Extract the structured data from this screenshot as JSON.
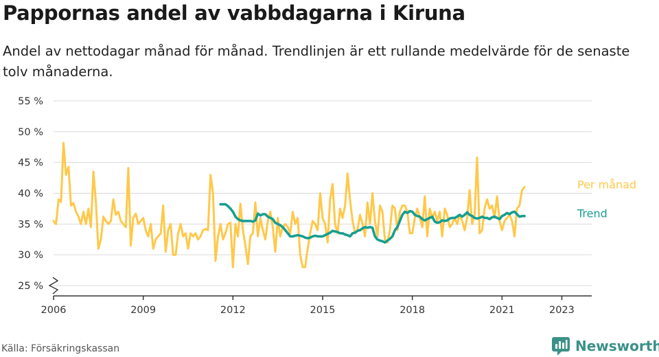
{
  "header": {
    "title": "Pappornas andel av vabbdagarna i Kiruna",
    "subtitle": "Andel av nettodagar månad för månad. Trendlinjen är ett rullande medelvärde för de senaste tolv månaderna."
  },
  "footer": {
    "source": "Källa: Försäkringskassan",
    "brand": "Newsworthy",
    "brand_icon": "bar-chart-speech-bubble-icon",
    "brand_color": "#3a9188"
  },
  "chart_data": {
    "type": "line",
    "title": "Pappornas andel av vabbdagarna i Kiruna",
    "ylabel": "",
    "xlabel": "",
    "ylim": [
      25,
      55
    ],
    "y_axis_break": true,
    "y_ticks": [
      25,
      30,
      35,
      40,
      45,
      50,
      55
    ],
    "y_tick_suffix": " %",
    "x_ticks": [
      "2006",
      "2009",
      "2012",
      "2015",
      "2018",
      "2021",
      "2023"
    ],
    "grid": "horizontal",
    "legend": "direct labels at right end of lines",
    "x_start": "2006-01",
    "x_end": "2023-05",
    "series": [
      {
        "name": "Per månad",
        "color": "#ffc84a",
        "values": [
          35.5,
          35.0,
          39.0,
          38.6,
          48.2,
          43.0,
          44.3,
          38.0,
          38.4,
          37.0,
          36.2,
          35.0,
          37.0,
          35.0,
          37.5,
          34.5,
          43.5,
          38.5,
          31.0,
          32.5,
          36.2,
          35.5,
          35.0,
          35.5,
          39.0,
          36.5,
          37.0,
          35.5,
          35.0,
          34.5,
          44.1,
          31.5,
          36.0,
          36.7,
          35.0,
          35.5,
          36.0,
          34.0,
          33.0,
          35.0,
          31.0,
          32.5,
          33.0,
          33.5,
          38.0,
          30.5,
          34.0,
          35.0,
          30.0,
          30.0,
          33.5,
          35.0,
          33.0,
          33.5,
          31.0,
          33.5,
          33.0,
          33.5,
          32.5,
          33.0,
          34.0,
          34.2,
          34.0,
          43.0,
          40.0,
          29.0,
          33.0,
          35.0,
          32.5,
          33.5,
          35.0,
          35.2,
          28.0,
          35.0,
          33.0,
          38.3,
          34.0,
          31.5,
          28.5,
          33.0,
          33.5,
          38.5,
          33.0,
          36.0,
          34.0,
          32.5,
          35.5,
          37.0,
          34.5,
          30.5,
          36.0,
          33.0,
          34.5,
          35.0,
          34.5,
          33.5,
          37.0,
          35.0,
          36.0,
          30.0,
          28.0,
          28.0,
          31.0,
          33.5,
          35.5,
          35.0,
          34.0,
          40.0,
          36.0,
          35.0,
          32.0,
          39.0,
          41.5,
          35.0,
          33.5,
          37.5,
          36.0,
          38.0,
          43.2,
          39.0,
          35.5,
          33.5,
          34.0,
          36.5,
          35.0,
          33.0,
          38.5,
          35.0,
          40.0,
          35.5,
          33.0,
          38.0,
          37.0,
          32.5,
          32.0,
          34.0,
          38.0,
          37.5,
          34.0,
          37.0,
          38.0,
          38.0,
          37.0,
          33.5,
          33.5,
          36.0,
          37.5,
          36.0,
          34.5,
          39.5,
          33.0,
          37.5,
          36.0,
          37.0,
          35.5,
          37.0,
          33.0,
          37.5,
          36.5,
          34.5,
          35.0,
          36.0,
          35.0,
          36.5,
          35.5,
          34.0,
          36.0,
          40.5,
          35.0,
          36.5,
          45.8,
          33.5,
          34.0,
          37.5,
          39.0,
          37.5,
          38.0,
          36.0,
          39.5,
          35.5,
          34.0,
          35.5,
          36.0,
          36.5,
          35.5,
          33.0,
          37.5,
          38.0,
          40.5,
          41.0
        ]
      },
      {
        "name": "Trend",
        "color": "#189e8f",
        "values": [
          38.2,
          38.2,
          38.2,
          37.9,
          37.5,
          37.0,
          36.2,
          35.8,
          35.6,
          35.5,
          35.5,
          35.5,
          35.5,
          35.4,
          35.6,
          36.7,
          36.4,
          36.6,
          36.6,
          36.2,
          36.0,
          35.8,
          35.2,
          35.0,
          34.8,
          34.5,
          34.0,
          33.5,
          33.0,
          33.0,
          33.1,
          33.2,
          33.1,
          33.0,
          32.8,
          32.7,
          32.8,
          33.0,
          33.1,
          33.0,
          33.0,
          33.0,
          33.2,
          33.4,
          33.6,
          33.9,
          33.8,
          33.7,
          33.5,
          33.5,
          33.3,
          33.2,
          33.0,
          33.5,
          33.6,
          33.9,
          34.0,
          34.3,
          34.5,
          34.4,
          34.5,
          34.4,
          33.0,
          32.5,
          32.3,
          32.2,
          32.0,
          32.3,
          32.6,
          33.0,
          34.0,
          34.5,
          35.5,
          36.5,
          37.0,
          36.8,
          37.1,
          37.0,
          36.5,
          36.3,
          36.2,
          35.8,
          35.6,
          35.8,
          36.0,
          36.2,
          35.4,
          35.2,
          35.3,
          35.6,
          35.5,
          35.6,
          35.9,
          36.0,
          36.0,
          36.2,
          36.5,
          36.2,
          36.5,
          36.9,
          36.5,
          36.3,
          36.0,
          35.9,
          36.0,
          36.2,
          36.0,
          36.0,
          35.8,
          36.1,
          36.2,
          36.0,
          35.8,
          36.3,
          36.5,
          36.8,
          36.6,
          36.9,
          37.0,
          36.6,
          36.2,
          36.3,
          36.3
        ]
      }
    ]
  }
}
